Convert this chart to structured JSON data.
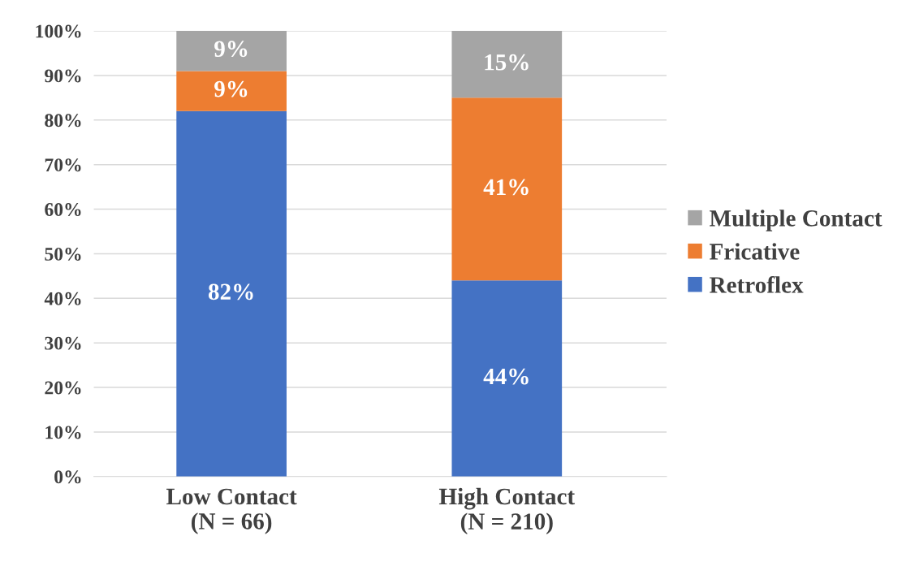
{
  "chart_data": {
    "type": "bar",
    "stacked": true,
    "categories": [
      "Low Contact\n(N = 66)",
      "High Contact\n(N = 210)"
    ],
    "series": [
      {
        "name": "Retroflex",
        "color": "#4472c4",
        "values": [
          82,
          44
        ],
        "value_labels": [
          "82%",
          "44%"
        ]
      },
      {
        "name": "Fricative",
        "color": "#ed7d31",
        "values": [
          9,
          41
        ],
        "value_labels": [
          "9%",
          "41%"
        ]
      },
      {
        "name": "Multiple Contact",
        "color": "#a5a5a5",
        "values": [
          9,
          15
        ],
        "value_labels": [
          "9%",
          "15%"
        ]
      }
    ],
    "ylim": [
      0,
      100
    ],
    "yticks": [
      {
        "value": 0,
        "label": "0%"
      },
      {
        "value": 10,
        "label": "10%"
      },
      {
        "value": 20,
        "label": "20%"
      },
      {
        "value": 30,
        "label": "30%"
      },
      {
        "value": 40,
        "label": "40%"
      },
      {
        "value": 50,
        "label": "50%"
      },
      {
        "value": 60,
        "label": "60%"
      },
      {
        "value": 70,
        "label": "70%"
      },
      {
        "value": 80,
        "label": "80%"
      },
      {
        "value": 90,
        "label": "90%"
      },
      {
        "value": 100,
        "label": "100%"
      }
    ],
    "grid": "y",
    "legend": "right"
  }
}
